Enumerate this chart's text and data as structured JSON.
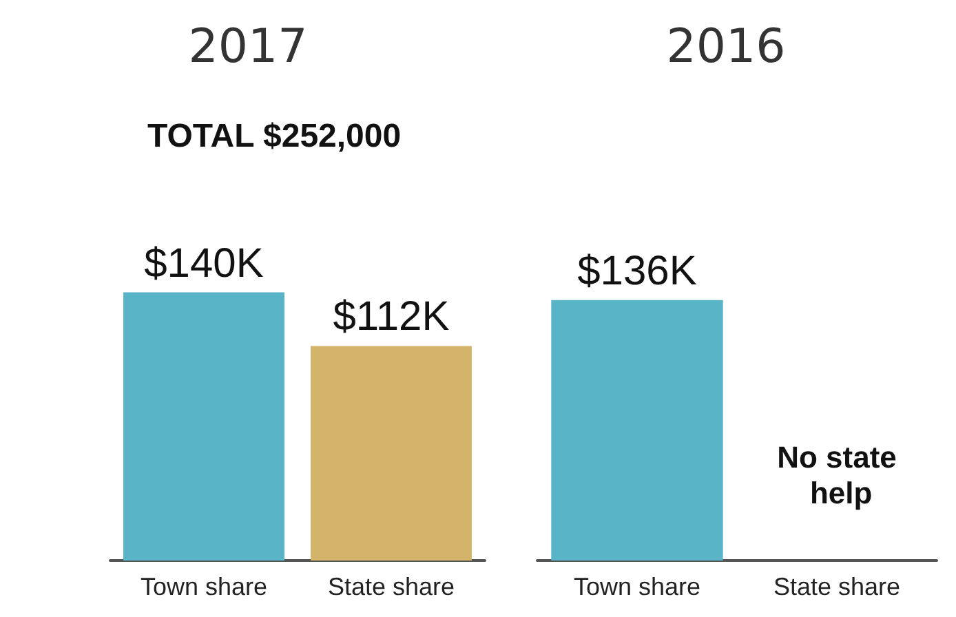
{
  "chart_data": [
    {
      "type": "bar",
      "title": "2017",
      "subtitle": "TOTAL $252,000",
      "categories": [
        "Town share",
        "State share"
      ],
      "colors": [
        "#5ab4c8",
        "#d4b46a"
      ],
      "values": [
        140000,
        112000
      ],
      "value_labels": [
        "$140K",
        "$112K"
      ]
    },
    {
      "type": "bar",
      "title": "2016",
      "categories": [
        "Town share",
        "State share"
      ],
      "colors": [
        "#5ab4c8",
        "#d4b46a"
      ],
      "values": [
        136000,
        null
      ],
      "value_labels": [
        "$136K",
        null
      ],
      "annotations": [
        "No state help"
      ]
    }
  ]
}
